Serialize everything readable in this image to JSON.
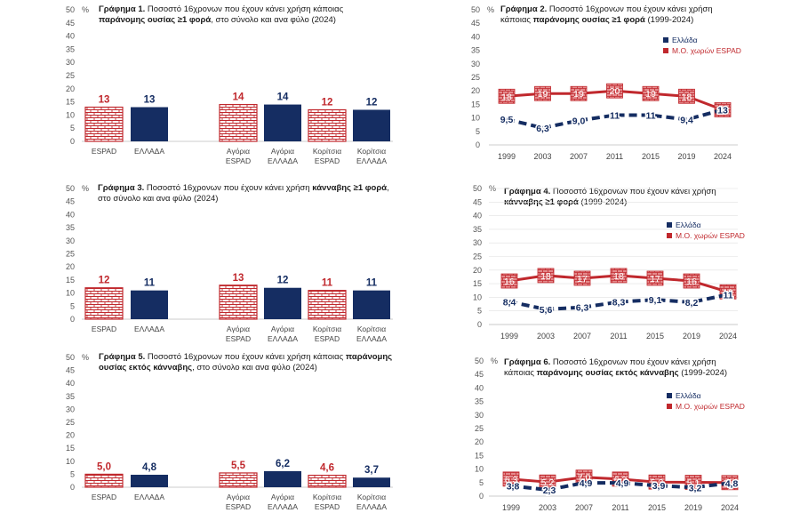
{
  "colors": {
    "espad": "#c0282d",
    "greece": "#152d62",
    "grid": "#e0e0e0",
    "axis_text": "#555555"
  },
  "chart_data": [
    {
      "id": "chart1",
      "type": "bar",
      "title_bold": "Γράφημα 1.",
      "title_rest_1": "Ποσοστό 16χρονων που έχουν κάνει χρήση κάποιας",
      "title_bold_2": "παράνομης ουσίας ≥1 φορά",
      "title_rest_2": ", στο σύνολο και ανα φύλο (2024)",
      "unit": "%",
      "ylim": [
        0,
        50
      ],
      "yticks": [
        "0",
        "5",
        "10",
        "15",
        "20",
        "25",
        "30",
        "35",
        "40",
        "45",
        "50"
      ],
      "categories": [
        "ESPAD",
        "ΕΛΛΑΔΑ",
        "Αγόρια ESPAD",
        "Αγόρια ΕΛΛΑΔΑ",
        "Κορίτσια ESPAD",
        "Κορίτσια ΕΛΛΑΔΑ"
      ],
      "values": [
        13,
        13,
        14,
        14,
        12,
        12
      ],
      "labels": [
        "13",
        "13",
        "14",
        "14",
        "12",
        "12"
      ]
    },
    {
      "id": "chart2",
      "type": "line",
      "title_bold": "Γράφημα 2.",
      "title_rest_1": "Ποσοστό 16χρονων που έχουν κάνει χρήση",
      "title_pre_2": "κάποιας",
      "title_bold_2": "παράνομης ουσίας ≥1 φορά",
      "title_rest_2": "(1999-2024)",
      "unit": "%",
      "ylim": [
        0,
        50
      ],
      "yticks": [
        "0",
        "5",
        "10",
        "15",
        "20",
        "25",
        "30",
        "35",
        "40",
        "45",
        "50"
      ],
      "x": [
        "1999",
        "2003",
        "2007",
        "2011",
        "2015",
        "2019",
        "2024"
      ],
      "series": [
        {
          "name": "Ελλάδα",
          "values": [
            9.5,
            6.3,
            9.0,
            11,
            11,
            9.4,
            13
          ],
          "labels": [
            "9,5",
            "6,3",
            "9,0",
            "11",
            "11",
            "9,4",
            "13"
          ]
        },
        {
          "name": "Μ.Ο. χωρών ESPAD",
          "values": [
            18,
            19,
            19,
            20,
            19,
            18,
            13
          ],
          "labels": [
            "18",
            "19",
            "19",
            "20",
            "19",
            "18",
            "13"
          ]
        }
      ]
    },
    {
      "id": "chart3",
      "type": "bar",
      "title_bold": "Γράφημα 3.",
      "title_rest_1": "Ποσοστό 16χρονων που έχουν κάνει χρήση",
      "title_bold_2": "κάνναβης ≥1 φορά",
      "title_rest_2": ",",
      "title_line_3": "στο σύνολο και ανα φύλο (2024)",
      "unit": "%",
      "ylim": [
        0,
        50
      ],
      "yticks": [
        "0",
        "5",
        "10",
        "15",
        "20",
        "25",
        "30",
        "35",
        "40",
        "45",
        "50"
      ],
      "categories": [
        "ESPAD",
        "ΕΛΛΑΔΑ",
        "Αγόρια ESPAD",
        "Αγόρια ΕΛΛΑΔΑ",
        "Κορίτσια ESPAD",
        "Κορίτσια ΕΛΛΑΔΑ"
      ],
      "values": [
        12,
        11,
        13,
        12,
        11,
        11
      ],
      "labels": [
        "12",
        "11",
        "13",
        "12",
        "11",
        "11"
      ]
    },
    {
      "id": "chart4",
      "type": "line",
      "title_bold": "Γράφημα 4.",
      "title_rest_1": "Ποσοστό 16χρονων που έχουν κάνει χρήση",
      "title_bold_2": "κάνναβης ≥1 φορά",
      "title_rest_2": "(1999-2024)",
      "unit": "%",
      "ylim": [
        0,
        50
      ],
      "yticks": [
        "0",
        "5",
        "10",
        "15",
        "20",
        "25",
        "30",
        "35",
        "40",
        "45",
        "50"
      ],
      "x": [
        "1999",
        "2003",
        "2007",
        "2011",
        "2015",
        "2019",
        "2024"
      ],
      "series": [
        {
          "name": "Ελλάδα",
          "values": [
            8.4,
            5.6,
            6.3,
            8.3,
            9.1,
            8.2,
            11
          ],
          "labels": [
            "8,4",
            "5,6",
            "6,3",
            "8,3",
            "9,1",
            "8,2",
            "11"
          ]
        },
        {
          "name": "Μ.Ο. χωρών ESPAD",
          "values": [
            16,
            18,
            17,
            18,
            17,
            16,
            12
          ],
          "labels": [
            "16",
            "18",
            "17",
            "18",
            "17",
            "16",
            "12"
          ]
        }
      ]
    },
    {
      "id": "chart5",
      "type": "bar",
      "title_bold": "Γράφημα 5.",
      "title_rest_1": "Ποσοστό 16χρονων που έχουν κάνει χρήση κάποιας",
      "title_bold_2": "παράνομης ουσίας εκτός κάνναβης",
      "title_rest_2": ", στο σύνολο και ανα φύλο (2024)",
      "unit": "%",
      "ylim": [
        0,
        50
      ],
      "yticks": [
        "0",
        "5",
        "10",
        "15",
        "20",
        "25",
        "30",
        "35",
        "40",
        "45",
        "50"
      ],
      "categories": [
        "ESPAD",
        "ΕΛΛΑΔΑ",
        "Αγόρια ESPAD",
        "Αγόρια ΕΛΛΑΔΑ",
        "Κορίτσια ESPAD",
        "Κορίτσια ΕΛΛΑΔΑ"
      ],
      "values": [
        5.0,
        4.8,
        5.5,
        6.2,
        4.6,
        3.7
      ],
      "labels": [
        "5,0",
        "4,8",
        "5,5",
        "6,2",
        "4,6",
        "3,7"
      ]
    },
    {
      "id": "chart6",
      "type": "line",
      "title_bold": "Γράφημα 6.",
      "title_rest_1": "Ποσοστό 16χρονων που έχουν κάνει χρήση",
      "title_pre_2": "κάποιας",
      "title_bold_2": "παράνομης ουσίας εκτός κάνναβης",
      "title_rest_2": "(1999-2024)",
      "unit": "%",
      "ylim": [
        0,
        50
      ],
      "yticks": [
        "0",
        "5",
        "10",
        "15",
        "20",
        "25",
        "30",
        "35",
        "40",
        "45",
        "50"
      ],
      "x": [
        "1999",
        "2003",
        "2007",
        "2011",
        "2015",
        "2019",
        "2024"
      ],
      "series": [
        {
          "name": "Ελλάδα",
          "values": [
            3.8,
            2.3,
            4.9,
            4.9,
            3.9,
            3.2,
            4.8
          ],
          "labels": [
            "3,8",
            "2,3",
            "4,9",
            "4,9",
            "3,9",
            "3,2",
            "4,8"
          ]
        },
        {
          "name": "Μ.Ο. χωρών ESPAD",
          "values": [
            6.3,
            5.2,
            7.0,
            6.3,
            5.2,
            5.1,
            5.0
          ],
          "labels": [
            "6,3",
            "5,2",
            "7,0",
            "6,3",
            "5,2",
            "5,1",
            "5,0"
          ]
        }
      ]
    }
  ]
}
